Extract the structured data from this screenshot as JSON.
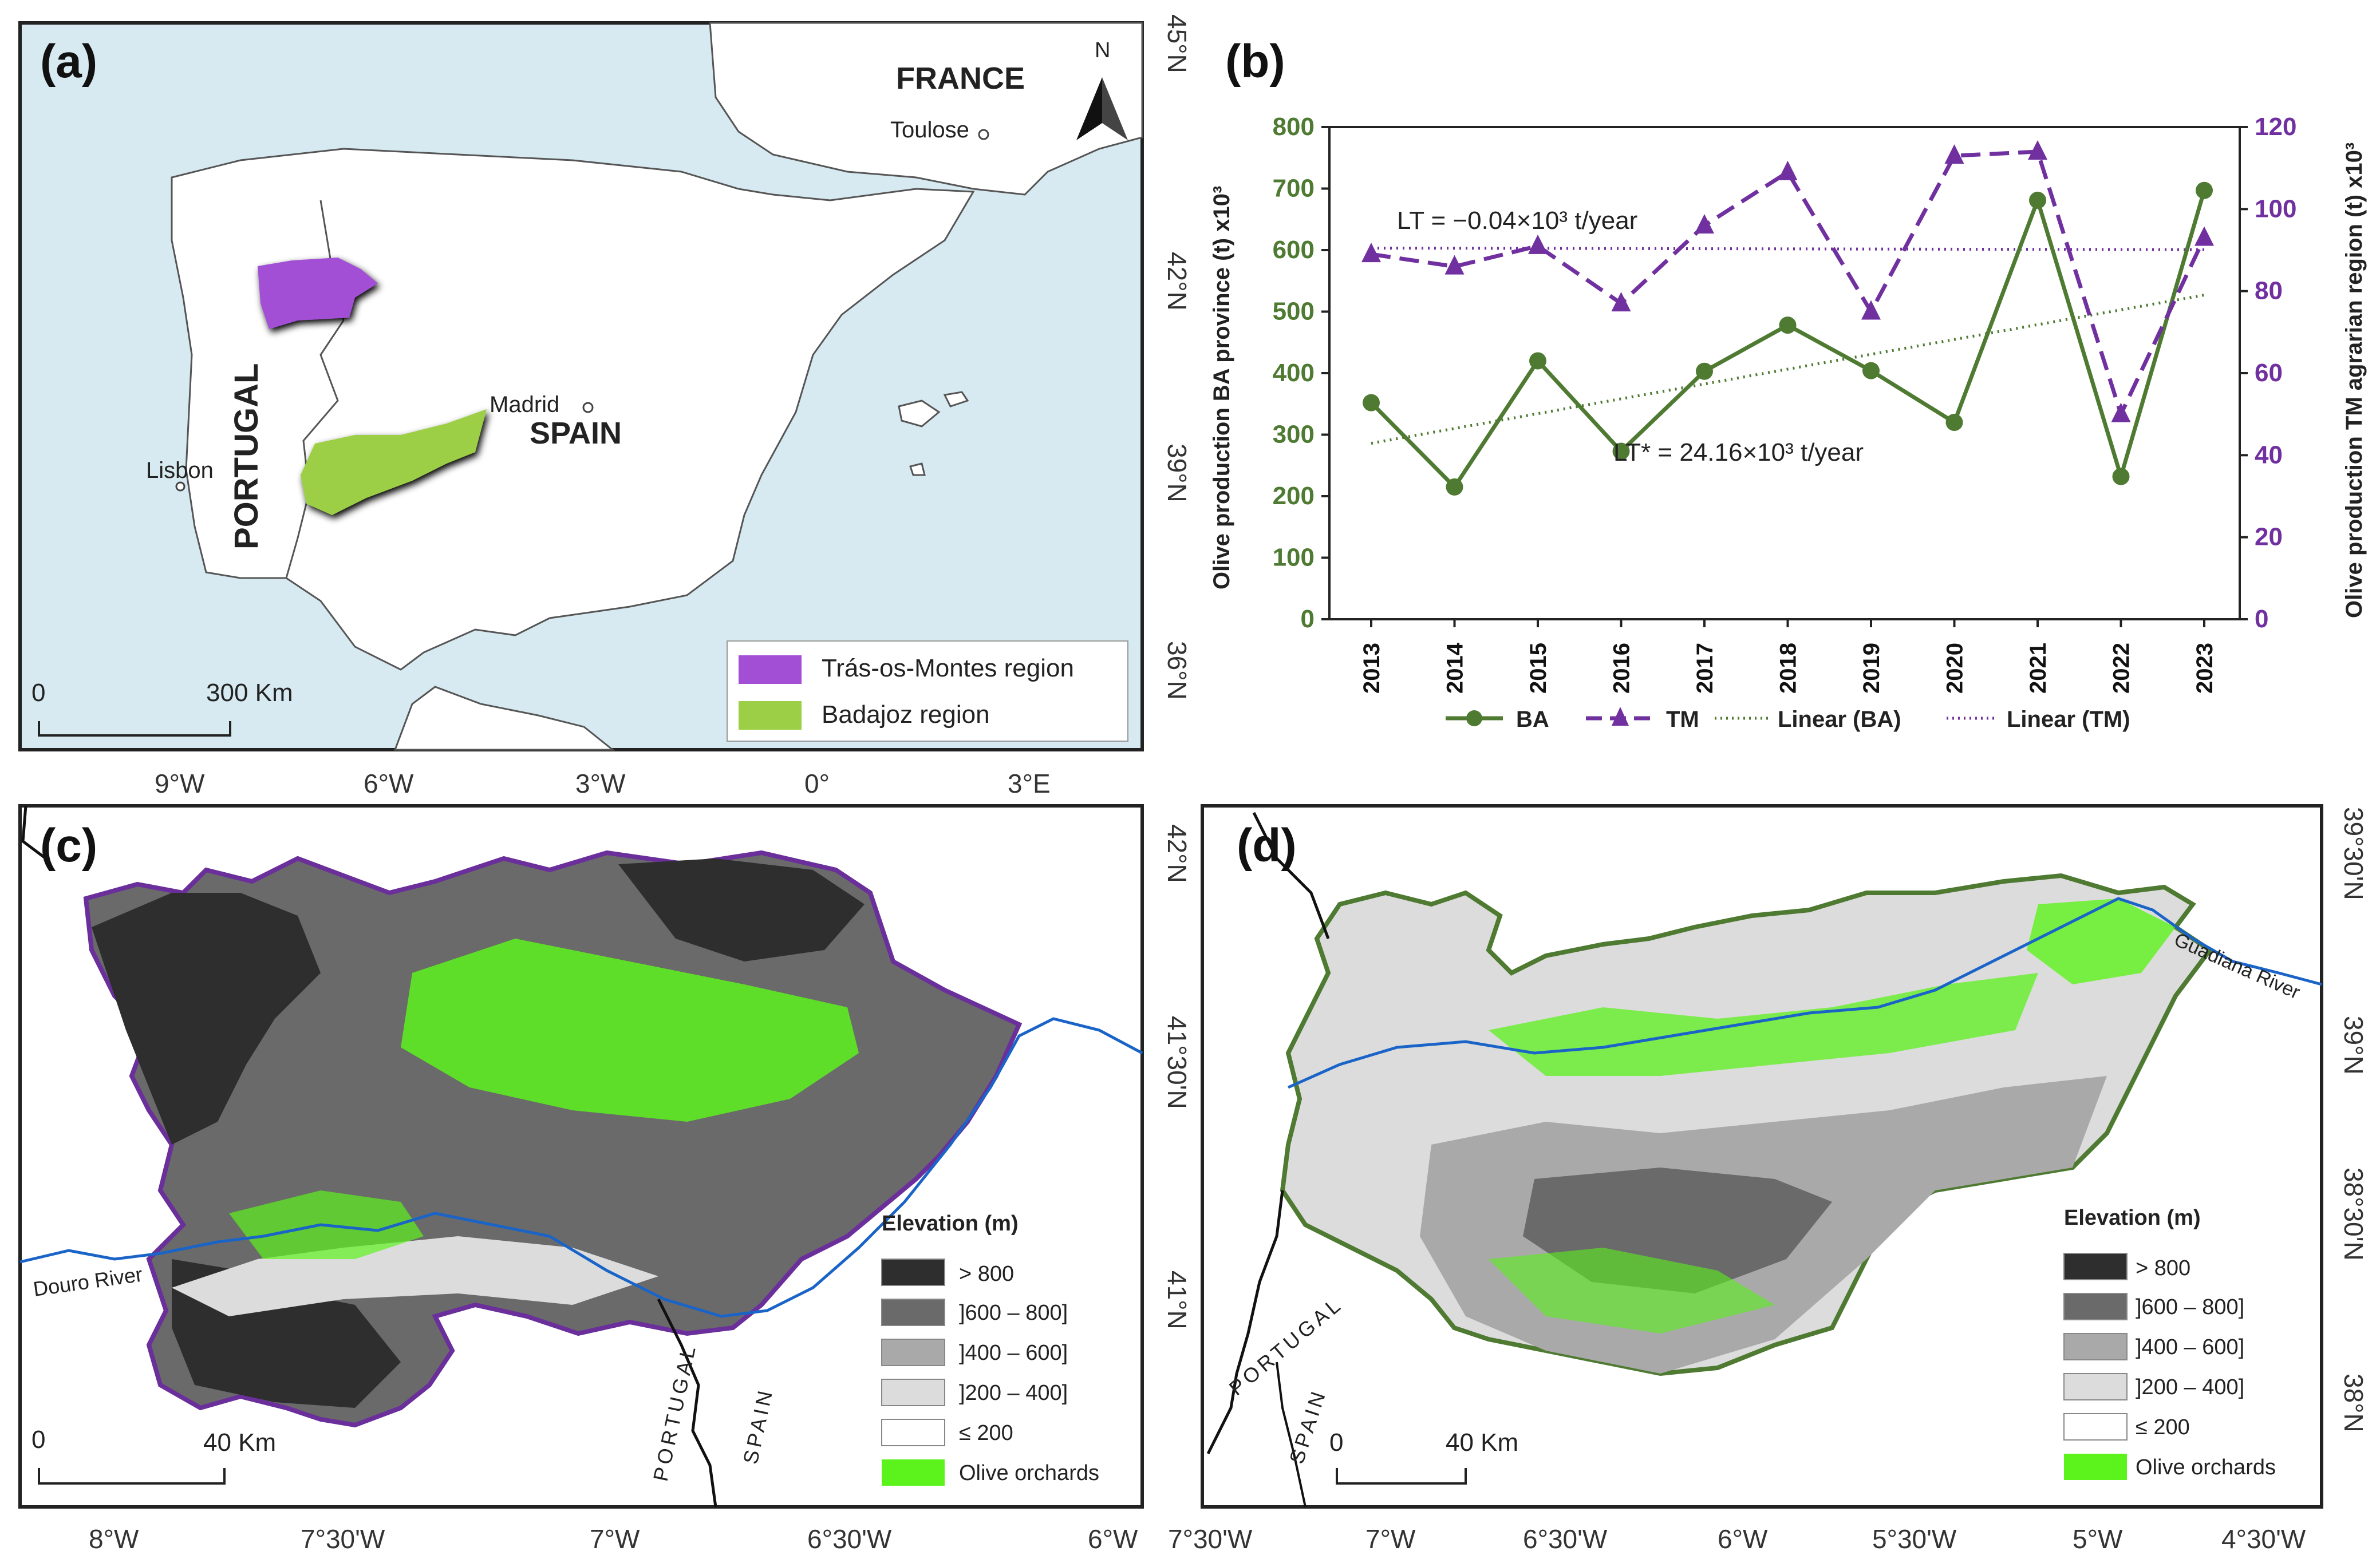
{
  "panel_a": {
    "label": "(a)",
    "north": "N",
    "places": {
      "france": "FRANCE",
      "toulose": "Toulose",
      "madrid": "Madrid",
      "spain": "SPAIN",
      "lisbon": "Lisbon",
      "portugal": "PORTUGAL"
    },
    "scale_zero": "0",
    "scale_label": "300 Km",
    "legend": [
      {
        "label": "Trás-os-Montes region",
        "color": "#a24fd6"
      },
      {
        "label": "Badajoz region",
        "color": "#9ccf45"
      }
    ],
    "lat_ticks": [
      "45°N",
      "42°N",
      "39°N",
      "36°N"
    ],
    "lon_ticks": [
      "9°W",
      "6°W",
      "3°W",
      "0°",
      "3°E"
    ]
  },
  "panel_b": {
    "label": "(b)",
    "lt_tm": "LT  = −0.04×10³ t/year",
    "lt_ba": "LT* = 24.16×10³ t/year",
    "legend": {
      "ba": "BA",
      "tm": "TM",
      "lin_ba": "Linear (BA)",
      "lin_tm": "Linear (TM)"
    }
  },
  "chart_data": {
    "type": "line",
    "x": [
      "2013",
      "2014",
      "2015",
      "2016",
      "2017",
      "2018",
      "2019",
      "2020",
      "2021",
      "2022",
      "2023"
    ],
    "series": [
      {
        "name": "BA",
        "axis": "left",
        "color": "#4f7a32",
        "values": [
          352,
          215,
          420,
          273,
          403,
          478,
          404,
          320,
          681,
          232,
          697
        ]
      },
      {
        "name": "TM",
        "axis": "right",
        "color": "#7030a0",
        "values": [
          89,
          86,
          91,
          77,
          96,
          109,
          75,
          113,
          114,
          50,
          93
        ]
      }
    ],
    "trend_lines": [
      {
        "name": "Linear (BA)",
        "axis": "left",
        "start": 286,
        "end": 527
      },
      {
        "name": "Linear (TM)",
        "axis": "right",
        "start": 90.5,
        "end": 90.1
      }
    ],
    "ylabel": "Olive production BA province (t) x10³",
    "ylabel_right": "Olive production TM agrarian region (t) x10³",
    "ylim": [
      0,
      800
    ],
    "ylim_right": [
      0,
      120
    ],
    "yticks": [
      "0",
      "100",
      "200",
      "300",
      "400",
      "500",
      "600",
      "700",
      "800"
    ],
    "yticks_right": [
      "0",
      "20",
      "40",
      "60",
      "80",
      "100",
      "120"
    ]
  },
  "panel_c": {
    "label": "(c)",
    "river": "Douro River",
    "portugal": "PORTUGAL",
    "spain": "SPAIN",
    "scale_zero": "0",
    "scale_label": "40 Km",
    "legend_title": "Elevation (m)",
    "lat_ticks": [
      "42°N",
      "41°30'N",
      "41°N"
    ],
    "lon_ticks": [
      "8°W",
      "7°30'W",
      "7°W",
      "6°30'W",
      "6°W"
    ]
  },
  "panel_d": {
    "label": "(d)",
    "river": "Guadiana River",
    "portugal": "PORTUGAL",
    "spain": "SPAIN",
    "scale_zero": "0",
    "scale_label": "40 Km",
    "legend_title": "Elevation (m)",
    "lat_ticks": [
      "39°30'N",
      "39°N",
      "38°30'N",
      "38°N"
    ],
    "lon_ticks": [
      "7°30'W",
      "7°W",
      "6°30'W",
      "6°W",
      "5°30'W",
      "5°W",
      "4°30'W"
    ]
  },
  "elevation_legend": [
    {
      "label": "> 800",
      "color": "#2e2e2e"
    },
    {
      "label": "]600 – 800]",
      "color": "#6a6a6a"
    },
    {
      "label": "]400 – 600]",
      "color": "#a9a9a9"
    },
    {
      "label": "]200 – 400]",
      "color": "#dcdcdc"
    },
    {
      "label": "≤ 200",
      "color": "#ffffff"
    },
    {
      "label": "Olive orchards",
      "color": "#5cf21c"
    }
  ]
}
